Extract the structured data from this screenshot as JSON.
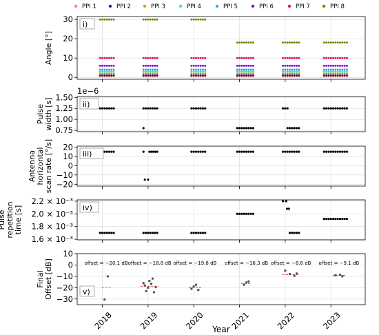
{
  "chart_data": {
    "type": "scatter",
    "xlabel": "Year",
    "x_tick_labels": [
      "2018",
      "2019",
      "2020",
      "2021",
      "2022",
      "2023"
    ],
    "x_ticks": [
      2018,
      2019,
      2020,
      2021,
      2022,
      2023
    ],
    "xlim": [
      2017.45,
      2023.75
    ],
    "legend": {
      "placement": "top",
      "entries": [
        {
          "name": "PPI 1",
          "color": "#f08080"
        },
        {
          "name": "PPI 2",
          "color": "#1a1aa0"
        },
        {
          "name": "PPI 3",
          "color": "#e69a00"
        },
        {
          "name": "PPI 4",
          "color": "#33e0d0"
        },
        {
          "name": "PPI 5",
          "color": "#2ab0e8"
        },
        {
          "name": "PPI 6",
          "color": "#8a10c8"
        },
        {
          "name": "PPI 7",
          "color": "#e0105a"
        },
        {
          "name": "PPI 8",
          "color": "#808000"
        }
      ]
    },
    "panels": [
      {
        "tag": "i)",
        "ylabel": [
          "Angle [°]"
        ],
        "ylim": [
          -1,
          31.5
        ],
        "yticks": [
          0,
          10,
          20,
          30
        ],
        "ytick_labels": [
          "0",
          "10",
          "20",
          "30"
        ],
        "grid": true,
        "x_ranges": [
          [
            2017.95,
            2018.25
          ],
          [
            2018.9,
            2019.2
          ],
          [
            2019.95,
            2020.25
          ],
          [
            2020.95,
            2021.3
          ],
          [
            2021.95,
            2022.3
          ],
          [
            2022.85,
            2023.35
          ]
        ],
        "series": [
          {
            "legend_index": 0,
            "y_by_range": [
              0.5,
              0.5,
              0.5,
              0.5,
              0.5,
              0.5
            ]
          },
          {
            "legend_index": 1,
            "y_by_range": [
              1.0,
              1.0,
              1.0,
              1.0,
              1.0,
              1.0
            ]
          },
          {
            "legend_index": 2,
            "y_by_range": [
              2.0,
              2.0,
              2.0,
              2.0,
              2.0,
              2.0
            ]
          },
          {
            "legend_index": 3,
            "y_by_range": [
              3.0,
              3.0,
              3.0,
              3.0,
              3.0,
              3.0
            ]
          },
          {
            "legend_index": 4,
            "y_by_range": [
              4.0,
              4.0,
              4.0,
              4.0,
              4.0,
              4.0
            ]
          },
          {
            "legend_index": 5,
            "y_by_range": [
              6.0,
              6.0,
              6.0,
              6.0,
              6.0,
              6.0
            ]
          },
          {
            "legend_index": 6,
            "y_by_range": [
              10.0,
              10.0,
              10.0,
              10.0,
              10.0,
              10.0
            ]
          },
          {
            "legend_index": 7,
            "y_by_range": [
              30.0,
              30.0,
              30.0,
              18.0,
              18.0,
              18.0
            ]
          }
        ]
      },
      {
        "tag": "ii)",
        "ylabel": [
          "Pulse",
          "width [s]"
        ],
        "scale_note": "1e−6",
        "ylim": [
          0.72,
          1.52
        ],
        "yticks": [
          0.75,
          1.0,
          1.25,
          1.5
        ],
        "ytick_labels": [
          "0.75",
          "1.00",
          "1.25",
          "1.50"
        ],
        "grid": true,
        "segments": [
          {
            "x": [
              2017.95,
              2018.25
            ],
            "y": 1.25
          },
          {
            "x": [
              2018.9,
              2019.2
            ],
            "y": 1.25
          },
          {
            "x": [
              2018.9,
              2018.9
            ],
            "y": 0.8
          },
          {
            "x": [
              2019.95,
              2020.25
            ],
            "y": 1.25
          },
          {
            "x": [
              2020.95,
              2021.3
            ],
            "y": 0.8
          },
          {
            "x": [
              2021.95,
              2022.05
            ],
            "y": 1.25
          },
          {
            "x": [
              2022.05,
              2022.3
            ],
            "y": 0.8
          },
          {
            "x": [
              2022.85,
              2023.35
            ],
            "y": 1.25
          }
        ]
      },
      {
        "tag": "iii)",
        "ylabel": [
          "Antenna",
          "horizontal",
          "scan rate [°/s]"
        ],
        "ylim": [
          -22,
          21
        ],
        "yticks": [
          -20,
          -10,
          0,
          10,
          20
        ],
        "ytick_labels": [
          "−20",
          "−10",
          "0",
          "10",
          "20"
        ],
        "grid": true,
        "segments": [
          {
            "x": [
              2017.95,
              2018.25
            ],
            "y": 15
          },
          {
            "x": [
              2018.9,
              2018.9
            ],
            "y": 15
          },
          {
            "x": [
              2018.93,
              2019.0
            ],
            "y": -15
          },
          {
            "x": [
              2019.03,
              2019.2
            ],
            "y": 15
          },
          {
            "x": [
              2019.95,
              2020.25
            ],
            "y": 15
          },
          {
            "x": [
              2020.95,
              2021.3
            ],
            "y": 15
          },
          {
            "x": [
              2021.95,
              2022.3
            ],
            "y": 15
          },
          {
            "x": [
              2022.85,
              2023.35
            ],
            "y": 15
          }
        ]
      },
      {
        "tag": "iv)",
        "ylabel": [
          "Pulse",
          "repetition",
          "time [s]"
        ],
        "ylim": [
          0.00159,
          0.00222
        ],
        "yticks": [
          0.0016,
          0.0018,
          0.002,
          0.0022
        ],
        "ytick_labels": [
          "1.6 × 10⁻³",
          "1.8 × 10⁻³",
          "2.0 × 10⁻³",
          "2.2 × 10⁻³"
        ],
        "grid": true,
        "segments": [
          {
            "x": [
              2017.95,
              2018.25
            ],
            "y": 0.0017
          },
          {
            "x": [
              2018.9,
              2019.2
            ],
            "y": 0.0017
          },
          {
            "x": [
              2019.95,
              2020.25
            ],
            "y": 0.0017
          },
          {
            "x": [
              2020.95,
              2021.3
            ],
            "y": 0.002
          },
          {
            "x": [
              2021.95,
              2022.02
            ],
            "y": 0.0022
          },
          {
            "x": [
              2022.04,
              2022.08
            ],
            "y": 0.00208
          },
          {
            "x": [
              2022.1,
              2022.3
            ],
            "y": 0.0017
          },
          {
            "x": [
              2022.85,
              2023.35
            ],
            "y": 0.00192
          }
        ]
      },
      {
        "tag": "v)",
        "ylabel": [
          "Final",
          "Offset [dB]"
        ],
        "ylim": [
          -35,
          10
        ],
        "yticks": [
          -30,
          -20,
          -10,
          0,
          10
        ],
        "ytick_labels": [
          "−30",
          "−20",
          "−10",
          "0",
          "10"
        ],
        "grid": true,
        "groups": [
          {
            "offset_label": "offset = −20.1 dB",
            "offset": -20.1,
            "line_color": "#999999",
            "points": [
              [
                2018.05,
                -30.5
              ],
              [
                2018.12,
                -10.0
              ]
            ]
          },
          {
            "offset_label": "offset = −18.8 dB",
            "offset": -18.8,
            "line_color": "#d62728",
            "points": [
              [
                2018.9,
                -16
              ],
              [
                2018.93,
                -18
              ],
              [
                2018.96,
                -23
              ],
              [
                2019.0,
                -20
              ],
              [
                2019.03,
                -14
              ],
              [
                2019.07,
                -16.5
              ],
              [
                2019.1,
                -12
              ],
              [
                2019.13,
                -24
              ],
              [
                2019.17,
                -19.5
              ]
            ]
          },
          {
            "offset_label": "offset = −19.8 dB",
            "offset": -19.8,
            "line_color": "#d62728",
            "points": [
              [
                2019.95,
                -21
              ],
              [
                2020.0,
                -19
              ],
              [
                2020.05,
                -17.5
              ],
              [
                2020.1,
                -22
              ]
            ]
          },
          {
            "offset_label": "offset = −16.3 dB",
            "offset": -16.3,
            "line_color": "#d62728",
            "points": [
              [
                2021.1,
                -17.5
              ],
              [
                2021.15,
                -15.5
              ],
              [
                2021.2,
                -14.5
              ]
            ]
          },
          {
            "offset_label": "offset = −8.6 dB",
            "offset": -8.6,
            "line_color": "#d62728",
            "points": [
              [
                2022.0,
                -5.0
              ],
              [
                2022.1,
                -8
              ],
              [
                2022.2,
                -9.5
              ],
              [
                2022.25,
                -7.5
              ]
            ]
          },
          {
            "offset_label": "offset = −9.1 dB",
            "offset": -9.1,
            "line_color": "#d62728",
            "points": [
              [
                2023.1,
                -9.0
              ],
              [
                2023.2,
                -8.5
              ],
              [
                2023.25,
                -10
              ]
            ]
          }
        ]
      }
    ]
  }
}
